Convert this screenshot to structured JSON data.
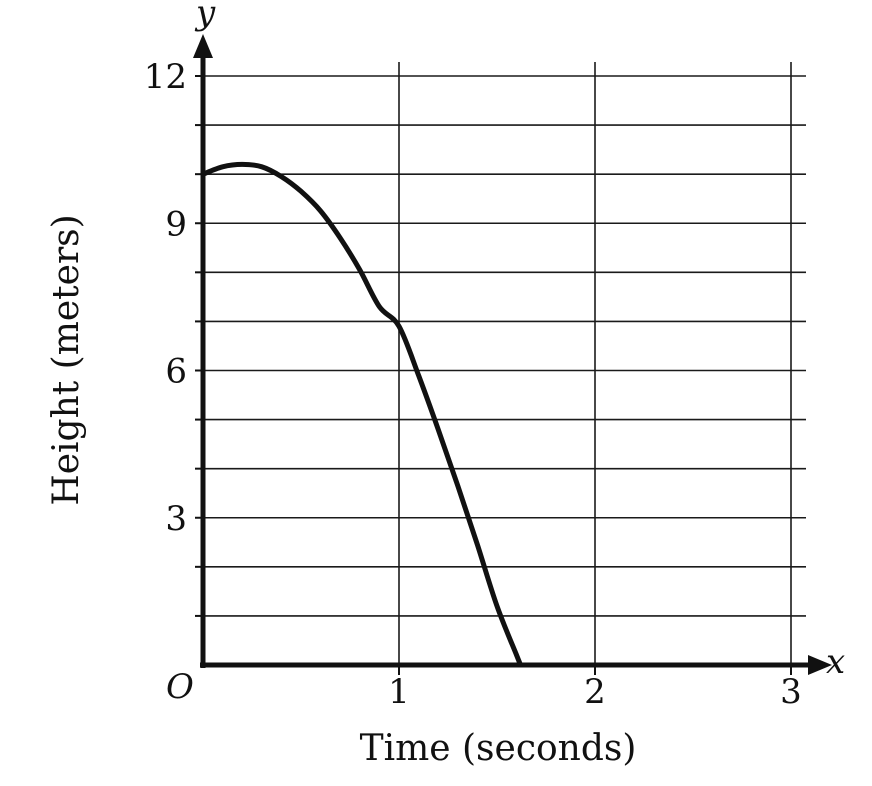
{
  "chart_data": {
    "type": "line",
    "title": "",
    "xlabel": "Time (seconds)",
    "ylabel": "Height (meters)",
    "x_axis_letter": "x",
    "y_axis_letter": "y",
    "origin_label": "O",
    "xlim": [
      0,
      3
    ],
    "ylim": [
      0,
      12
    ],
    "x_ticks": [
      1,
      2,
      3
    ],
    "x_tick_labels": [
      "1",
      "2",
      "3"
    ],
    "y_ticks": [
      3,
      6,
      9,
      12
    ],
    "y_tick_labels": [
      "3",
      "6",
      "9",
      "12"
    ],
    "x_grid_step": 1,
    "y_grid_step": 1,
    "grid": true,
    "legend": "none",
    "series": [
      {
        "x": [
          0,
          0.1,
          0.2,
          0.3,
          0.4,
          0.5,
          0.6,
          0.7,
          0.8,
          0.9,
          1.0,
          1.1,
          1.2,
          1.3,
          1.4,
          1.5,
          1.6,
          1.62
        ],
        "y": [
          10.0,
          10.15,
          10.2,
          10.15,
          9.95,
          9.65,
          9.25,
          8.7,
          8.05,
          7.3,
          6.9,
          5.9,
          4.8,
          3.65,
          2.45,
          1.2,
          0.2,
          0
        ]
      }
    ]
  }
}
